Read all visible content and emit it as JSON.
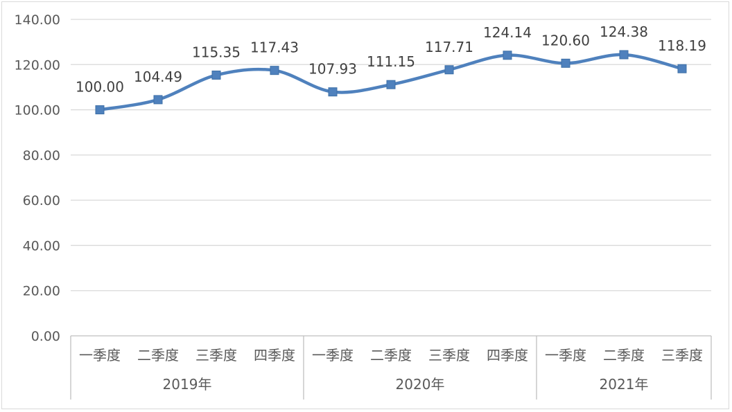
{
  "chart_data": {
    "type": "line",
    "smooth": true,
    "ylim": [
      0,
      140
    ],
    "y_ticks": [
      "0.00",
      "20.00",
      "40.00",
      "60.00",
      "80.00",
      "100.00",
      "120.00",
      "140.00"
    ],
    "grid": true,
    "categories": [
      "一季度",
      "二季度",
      "三季度",
      "四季度",
      "一季度",
      "二季度",
      "三季度",
      "四季度",
      "一季度",
      "二季度",
      "三季度"
    ],
    "groups": [
      {
        "label": "2019年",
        "count": 4
      },
      {
        "label": "2020年",
        "count": 4
      },
      {
        "label": "2021年",
        "count": 3
      }
    ],
    "series": [
      {
        "values": [
          100.0,
          104.49,
          115.35,
          117.43,
          107.93,
          111.15,
          117.71,
          124.14,
          120.6,
          124.38,
          118.19
        ],
        "labels": [
          "100.00",
          "104.49",
          "115.35",
          "117.43",
          "107.93",
          "111.15",
          "117.71",
          "124.14",
          "120.60",
          "124.38",
          "118.19"
        ],
        "color": "#4f81bd",
        "marker": "square"
      }
    ],
    "gridline_color": "#d9d9d9",
    "axis_color": "#bfbfbf"
  }
}
